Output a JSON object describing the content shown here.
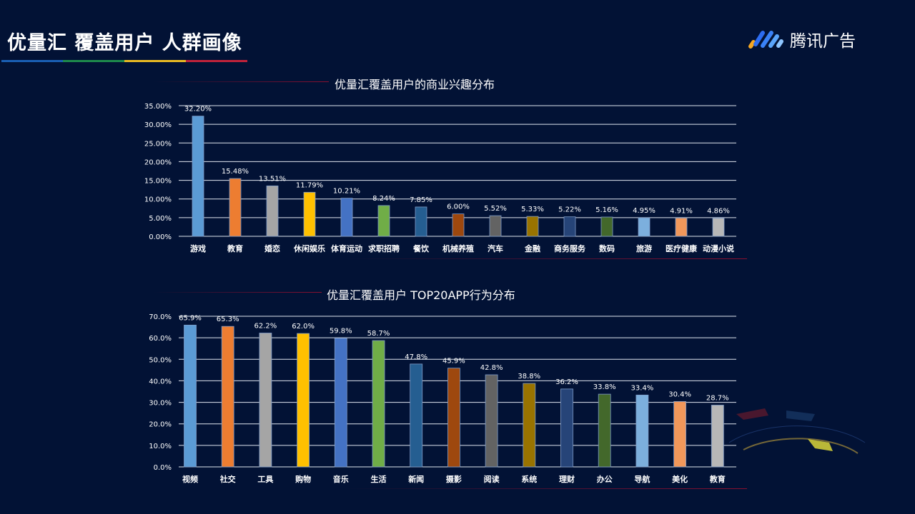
{
  "header": {
    "title": "优量汇 覆盖用户 人群画像",
    "title_bar_colors": [
      "#1a5fb4",
      "#1e8a4c",
      "#e8b923",
      "#c0223a"
    ],
    "logo_text": "腾讯广告"
  },
  "colors": [
    "#5B9BD5",
    "#ED7D31",
    "#A5A5A5",
    "#FFC000",
    "#4472C4",
    "#70AD47",
    "#255E91",
    "#9E480E",
    "#636363",
    "#997300",
    "#264478",
    "#43682B",
    "#7CAFDD",
    "#F1975A",
    "#B7B7B7"
  ],
  "chart_data": [
    {
      "type": "bar",
      "title": "优量汇覆盖用户的商业兴趣分布",
      "categories": [
        "游戏",
        "教育",
        "婚恋",
        "休闲娱乐",
        "体育运动",
        "求职招聘",
        "餐饮",
        "机械养殖",
        "汽车",
        "金融",
        "商务服务",
        "数码",
        "旅游",
        "医疗健康",
        "动漫小说"
      ],
      "values": [
        32.2,
        15.48,
        13.51,
        11.79,
        10.21,
        8.24,
        7.85,
        6.0,
        5.52,
        5.33,
        5.22,
        5.16,
        4.95,
        4.91,
        4.86
      ],
      "data_labels": [
        "32.20%",
        "15.48%",
        "13.51%",
        "11.79%",
        "10.21%",
        "8.24%",
        "7.85%",
        "6.00%",
        "5.52%",
        "5.33%",
        "5.22%",
        "5.16%",
        "4.95%",
        "4.91%",
        "4.86%"
      ],
      "yticks": [
        "0.00%",
        "5.00%",
        "10.00%",
        "15.00%",
        "20.00%",
        "25.00%",
        "30.00%",
        "35.00%"
      ],
      "ylim": [
        0,
        35
      ],
      "grid": true
    },
    {
      "type": "bar",
      "title": "优量汇覆盖用户 TOP20APP行为分布",
      "categories": [
        "视频",
        "社交",
        "工具",
        "购物",
        "音乐",
        "生活",
        "新闻",
        "摄影",
        "阅读",
        "系统",
        "理财",
        "办公",
        "导航",
        "美化",
        "教育"
      ],
      "values": [
        65.9,
        65.3,
        62.2,
        62.0,
        59.8,
        58.7,
        47.8,
        45.9,
        42.8,
        38.8,
        36.2,
        33.8,
        33.4,
        30.4,
        28.7
      ],
      "data_labels": [
        "65.9%",
        "65.3%",
        "62.2%",
        "62.0%",
        "59.8%",
        "58.7%",
        "47.8%",
        "45.9%",
        "42.8%",
        "38.8%",
        "36.2%",
        "33.8%",
        "33.4%",
        "30.4%",
        "28.7%"
      ],
      "yticks": [
        "0.0%",
        "10.0%",
        "20.0%",
        "30.0%",
        "40.0%",
        "50.0%",
        "60.0%",
        "70.0%"
      ],
      "ylim": [
        0,
        70
      ],
      "grid": true
    }
  ]
}
